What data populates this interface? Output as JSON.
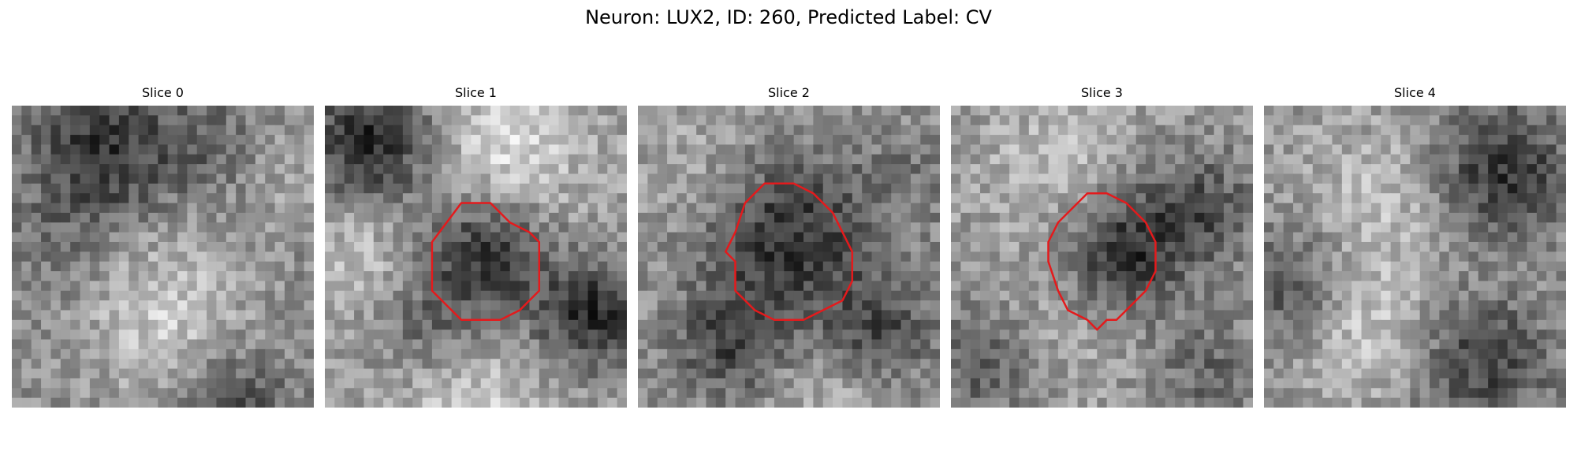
{
  "title": "Neuron: LUX2, ID: 260, Predicted Label: CV",
  "contour_color": "#e41a1c",
  "slices": [
    {
      "label": "Slice 0",
      "has_contour": false
    },
    {
      "label": "Slice 1",
      "has_contour": true
    },
    {
      "label": "Slice 2",
      "has_contour": true
    },
    {
      "label": "Slice 3",
      "has_contour": true
    },
    {
      "label": "Slice 4",
      "has_contour": false
    }
  ]
}
